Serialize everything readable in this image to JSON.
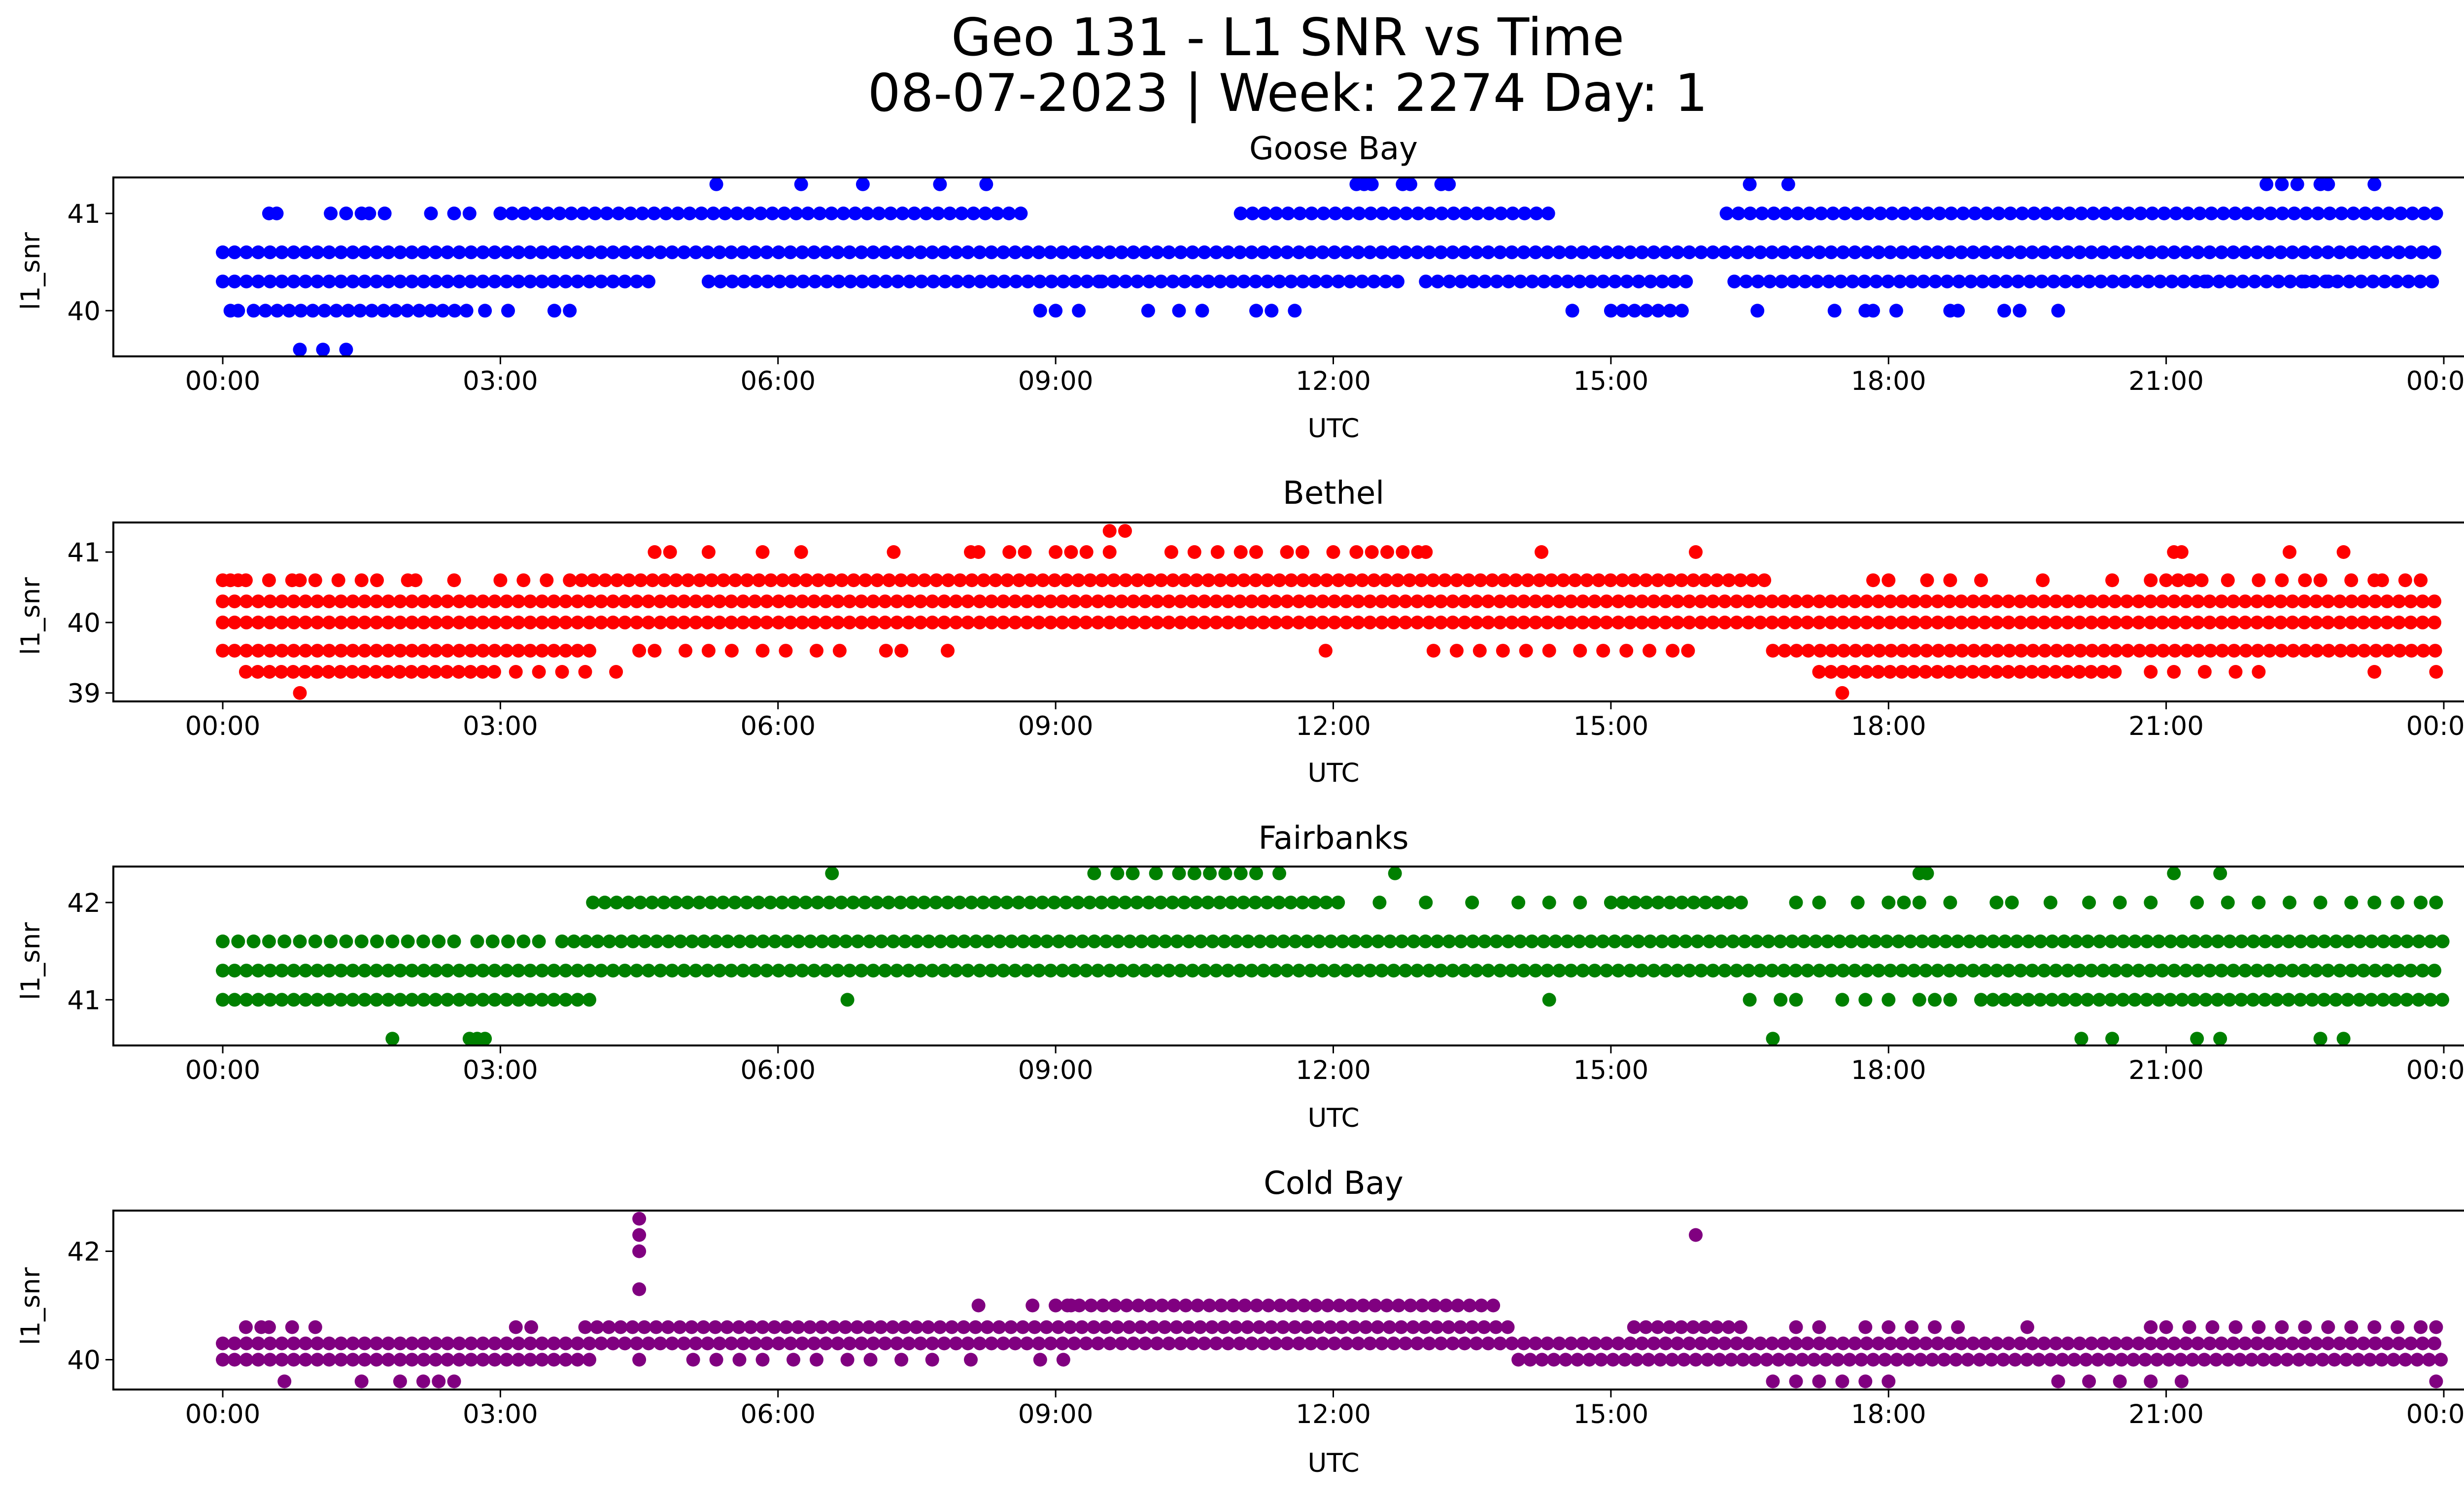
{
  "figure": {
    "title_line1": "Geo 131 - L1 SNR vs Time",
    "title_line2": "08-07-2023 | Week: 2274 Day: 1"
  },
  "chart_data": [
    {
      "type": "scatter",
      "title": "Goose Bay",
      "xlabel": "UTC",
      "ylabel": "l1_snr",
      "color": "#0000ff",
      "xlim": [
        "00:00",
        "24:00"
      ],
      "xticks": [
        "00:00",
        "03:00",
        "06:00",
        "09:00",
        "12:00",
        "15:00",
        "18:00",
        "21:00",
        "00:00"
      ],
      "ylim": [
        39.53,
        41.37
      ],
      "yticks": [
        40,
        41
      ],
      "levels": [
        {
          "y": 40.6,
          "x_ranges": [
            [
              "00:00",
              "24:00"
            ]
          ]
        },
        {
          "y": 40.3,
          "x_ranges": [
            [
              "00:00",
              "04:42"
            ],
            [
              "05:15",
              "09:30"
            ],
            [
              "09:30",
              "12:45"
            ],
            [
              "13:00",
              "15:50"
            ],
            [
              "16:20",
              "24:00"
            ]
          ]
        },
        {
          "y": 41.0,
          "x_ranges": [
            [
              "03:00",
              "08:45"
            ],
            [
              "11:00",
              "14:20"
            ],
            [
              "16:15",
              "24:00"
            ]
          ]
        },
        {
          "y": 40.0,
          "x_ranges": [
            [
              "00:20",
              "02:40"
            ],
            [
              "15:00",
              "15:50"
            ]
          ]
        }
      ],
      "scatter_points": [
        {
          "y": 41.0,
          "x": [
            "00:30",
            "00:35",
            "01:10",
            "01:20",
            "01:30",
            "01:35",
            "01:45",
            "02:15",
            "02:30",
            "02:40"
          ]
        },
        {
          "y": 40.0,
          "x": [
            "00:05",
            "00:10",
            "02:50",
            "03:05",
            "03:35",
            "03:45",
            "08:50",
            "09:00",
            "09:15",
            "10:00",
            "10:20",
            "10:35",
            "11:10",
            "11:20",
            "11:35",
            "14:35",
            "16:35",
            "17:25",
            "17:45",
            "17:50",
            "18:05",
            "18:40",
            "18:45",
            "19:15",
            "19:25",
            "19:50"
          ]
        },
        {
          "y": 39.6,
          "x": [
            "00:50",
            "01:05",
            "01:20"
          ]
        },
        {
          "y": 40.3,
          "x": [
            "21:25",
            "22:30",
            "22:45"
          ]
        },
        {
          "y": 41.3,
          "x": [
            "05:20",
            "06:15",
            "06:55",
            "07:45",
            "08:15",
            "12:15",
            "12:20",
            "12:25",
            "12:45",
            "12:50",
            "13:10",
            "13:15",
            "16:30",
            "16:55",
            "22:05",
            "22:15",
            "22:25",
            "22:40",
            "22:45",
            "23:15"
          ]
        }
      ]
    },
    {
      "type": "scatter",
      "title": "Bethel",
      "xlabel": "UTC",
      "ylabel": "l1_snr",
      "color": "#ff0000",
      "xlim": [
        "00:00",
        "24:00"
      ],
      "xticks": [
        "00:00",
        "03:00",
        "06:00",
        "09:00",
        "12:00",
        "15:00",
        "18:00",
        "21:00",
        "00:00"
      ],
      "ylim": [
        38.88,
        41.42
      ],
      "yticks": [
        39,
        40,
        41
      ],
      "levels": [
        {
          "y": 40.3,
          "x_ranges": [
            [
              "00:00",
              "24:00"
            ]
          ]
        },
        {
          "y": 40.0,
          "x_ranges": [
            [
              "00:00",
              "24:00"
            ]
          ]
        },
        {
          "y": 40.6,
          "x_ranges": [
            [
              "03:45",
              "16:45"
            ],
            [
              "21:00",
              "21:30"
            ]
          ]
        },
        {
          "y": 39.6,
          "x_ranges": [
            [
              "00:00",
              "04:00"
            ],
            [
              "16:45",
              "24:00"
            ]
          ]
        },
        {
          "y": 39.3,
          "x_ranges": [
            [
              "00:15",
              "03:00"
            ],
            [
              "17:15",
              "20:30"
            ]
          ]
        }
      ],
      "scatter_points": [
        {
          "y": 40.6,
          "x": [
            "00:00",
            "00:05",
            "00:10",
            "00:15",
            "00:30",
            "00:45",
            "00:50",
            "01:00",
            "01:15",
            "01:30",
            "01:40",
            "02:00",
            "02:05",
            "02:30",
            "03:00",
            "03:15",
            "03:30",
            "17:50",
            "18:00",
            "18:25",
            "18:40",
            "19:00",
            "19:40",
            "20:25",
            "20:50",
            "21:15",
            "21:40",
            "22:00",
            "22:15",
            "22:30",
            "22:40",
            "23:00",
            "23:15",
            "23:20",
            "23:35",
            "23:45"
          ]
        },
        {
          "y": 41.0,
          "x": [
            "04:40",
            "04:50",
            "05:15",
            "05:50",
            "06:15",
            "07:15",
            "08:05",
            "08:10",
            "08:30",
            "08:40",
            "09:00",
            "09:10",
            "09:20",
            "09:35",
            "10:15",
            "10:30",
            "10:45",
            "11:00",
            "11:10",
            "11:30",
            "11:40",
            "12:00",
            "12:15",
            "12:25",
            "12:35",
            "12:45",
            "12:55",
            "13:00",
            "14:15",
            "15:55",
            "21:05",
            "21:10",
            "22:20",
            "22:55"
          ]
        },
        {
          "y": 41.3,
          "x": [
            "09:35",
            "09:45"
          ]
        },
        {
          "y": 39.6,
          "x": [
            "04:30",
            "04:40",
            "05:00",
            "05:15",
            "05:30",
            "05:50",
            "06:05",
            "06:25",
            "06:40",
            "07:10",
            "07:20",
            "07:50",
            "11:55",
            "13:05",
            "13:20",
            "13:35",
            "13:50",
            "14:05",
            "14:20",
            "14:40",
            "14:55",
            "15:10",
            "15:25",
            "15:40",
            "15:50"
          ]
        },
        {
          "y": 39.3,
          "x": [
            "03:10",
            "03:25",
            "03:40",
            "03:55",
            "04:15",
            "20:50",
            "21:05",
            "21:25",
            "21:45",
            "22:00",
            "23:15",
            "23:55"
          ]
        },
        {
          "y": 39.0,
          "x": [
            "00:50",
            "17:30"
          ]
        }
      ]
    },
    {
      "type": "scatter",
      "title": "Fairbanks",
      "xlabel": "UTC",
      "ylabel": "l1_snr",
      "color": "#008000",
      "xlim": [
        "00:00",
        "24:00"
      ],
      "xticks": [
        "00:00",
        "03:00",
        "06:00",
        "09:00",
        "12:00",
        "15:00",
        "18:00",
        "21:00",
        "00:00"
      ],
      "ylim": [
        40.53,
        42.37
      ],
      "yticks": [
        41,
        42
      ],
      "levels": [
        {
          "y": 41.6,
          "x_ranges": [
            [
              "03:40",
              "24:00"
            ]
          ]
        },
        {
          "y": 41.3,
          "x_ranges": [
            [
              "00:00",
              "24:00"
            ]
          ]
        },
        {
          "y": 42.0,
          "x_ranges": [
            [
              "04:00",
              "12:10"
            ],
            [
              "15:00",
              "16:30"
            ]
          ]
        },
        {
          "y": 41.0,
          "x_ranges": [
            [
              "00:00",
              "04:00"
            ],
            [
              "19:00",
              "24:00"
            ]
          ]
        }
      ],
      "scatter_points": [
        {
          "y": 41.6,
          "x": [
            "00:00",
            "00:10",
            "00:20",
            "00:30",
            "00:40",
            "00:50",
            "01:00",
            "01:10",
            "01:20",
            "01:30",
            "01:40",
            "01:50",
            "02:00",
            "02:10",
            "02:20",
            "02:30",
            "02:45",
            "02:55",
            "03:05",
            "03:15",
            "03:25"
          ]
        },
        {
          "y": 42.0,
          "x": [
            "12:30",
            "13:00",
            "13:30",
            "14:00",
            "14:20",
            "14:40",
            "17:00",
            "17:15",
            "17:40",
            "18:00",
            "18:10",
            "18:20",
            "18:40",
            "19:10",
            "19:20",
            "19:45",
            "20:10",
            "20:30",
            "20:50",
            "21:20",
            "21:40",
            "22:00",
            "22:20",
            "22:40",
            "23:00",
            "23:15",
            "23:30",
            "23:45",
            "23:55"
          ]
        },
        {
          "y": 42.3,
          "x": [
            "06:35",
            "09:25",
            "09:40",
            "09:50",
            "10:05",
            "10:20",
            "10:30",
            "10:40",
            "10:50",
            "11:00",
            "11:10",
            "11:25",
            "12:40",
            "18:20",
            "18:25",
            "21:05",
            "21:35"
          ]
        },
        {
          "y": 41.0,
          "x": [
            "06:45",
            "14:20",
            "16:30",
            "16:50",
            "17:00",
            "17:30",
            "17:45",
            "18:00",
            "18:20",
            "18:30",
            "18:40"
          ]
        },
        {
          "y": 40.6,
          "x": [
            "01:50",
            "02:40",
            "02:45",
            "02:50",
            "16:45",
            "20:05",
            "20:25",
            "21:20",
            "21:35",
            "22:40",
            "22:55"
          ]
        }
      ]
    },
    {
      "type": "scatter",
      "title": "Cold Bay",
      "xlabel": "UTC",
      "ylabel": "l1_snr",
      "color": "#800080",
      "xlim": [
        "00:00",
        "24:00"
      ],
      "xticks": [
        "00:00",
        "03:00",
        "06:00",
        "09:00",
        "12:00",
        "15:00",
        "18:00",
        "21:00",
        "00:00"
      ],
      "ylim": [
        39.45,
        42.75
      ],
      "yticks": [
        40,
        42
      ],
      "levels": [
        {
          "y": 40.3,
          "x_ranges": [
            [
              "00:00",
              "24:00"
            ]
          ]
        },
        {
          "y": 40.0,
          "x_ranges": [
            [
              "00:00",
              "04:00"
            ],
            [
              "14:00",
              "24:00"
            ]
          ]
        },
        {
          "y": 40.6,
          "x_ranges": [
            [
              "03:55",
              "14:00"
            ],
            [
              "15:15",
              "16:30"
            ]
          ]
        },
        {
          "y": 41.0,
          "x_ranges": [
            [
              "09:00",
              "13:45"
            ]
          ]
        }
      ],
      "scatter_points": [
        {
          "y": 40.6,
          "x": [
            "00:15",
            "00:25",
            "00:30",
            "00:45",
            "01:00",
            "03:10",
            "03:20",
            "20:50",
            "21:00",
            "21:15",
            "21:30",
            "21:45",
            "22:00",
            "22:15",
            "22:30",
            "22:45",
            "23:00",
            "23:15",
            "23:30",
            "23:45",
            "23:55",
            "17:00",
            "17:15",
            "17:45",
            "18:00",
            "18:15",
            "18:30",
            "18:45",
            "19:30"
          ]
        },
        {
          "y": 40.0,
          "x": [
            "04:30",
            "05:05",
            "05:20",
            "05:35",
            "05:50",
            "06:10",
            "06:25",
            "06:45",
            "07:00",
            "07:20",
            "07:40",
            "08:05",
            "08:50",
            "09:05"
          ]
        },
        {
          "y": 41.0,
          "x": [
            "08:10",
            "08:45",
            "09:00",
            "09:10"
          ]
        },
        {
          "y": 39.6,
          "x": [
            "00:40",
            "01:30",
            "01:55",
            "02:10",
            "02:20",
            "02:30",
            "16:45",
            "17:00",
            "17:15",
            "17:30",
            "17:45",
            "18:00",
            "19:50",
            "20:10",
            "20:30",
            "20:50",
            "21:10",
            "23:55"
          ]
        },
        {
          "y": 41.3,
          "x": [
            "04:30"
          ]
        },
        {
          "y": 42.0,
          "x": [
            "04:30"
          ]
        },
        {
          "y": 42.3,
          "x": [
            "04:30",
            "15:55"
          ]
        },
        {
          "y": 42.6,
          "x": [
            "04:30"
          ]
        }
      ]
    }
  ]
}
